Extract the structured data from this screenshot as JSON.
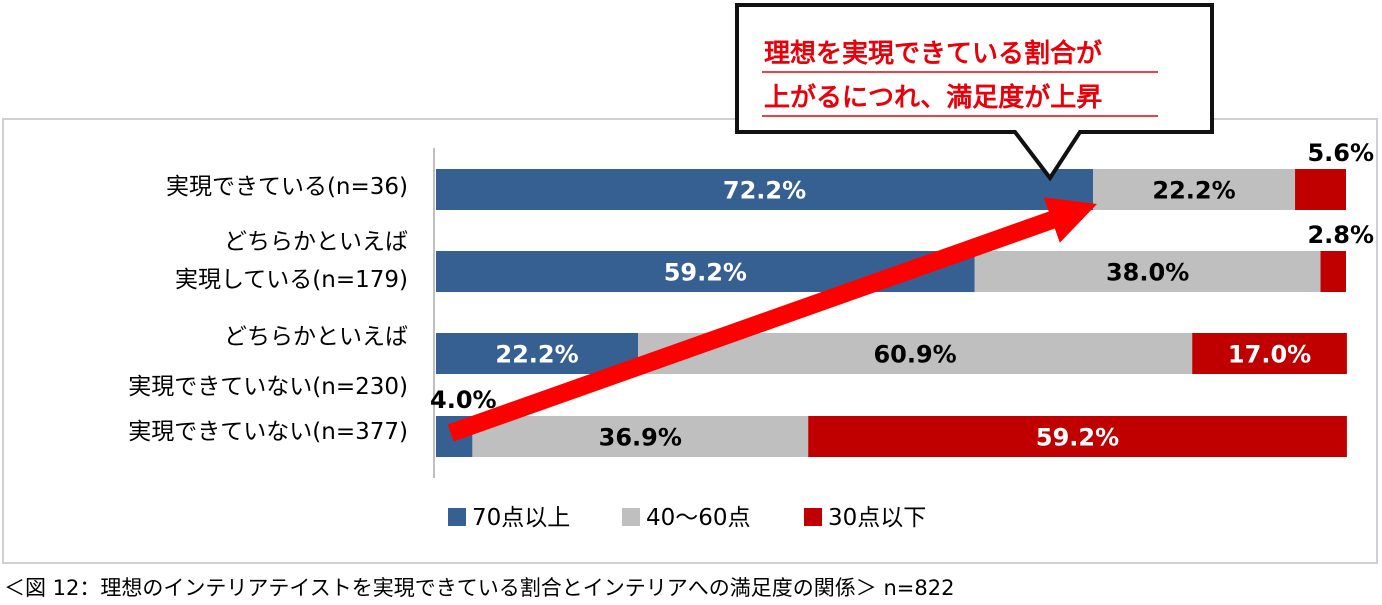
{
  "chart_data": {
    "type": "bar",
    "orientation": "horizontal",
    "stacked": "percent",
    "categories": [
      [
        "実現できている(n=36)"
      ],
      [
        "どちらかといえば",
        "実現している(n=179)"
      ],
      [
        "どちらかといえば",
        "実現できていない(n=230)"
      ],
      [
        "実現できていない(n=377)"
      ]
    ],
    "series": [
      {
        "name": "70点以上",
        "color": "#376092",
        "values": [
          72.2,
          59.2,
          22.2,
          4.0
        ],
        "labels": [
          "72.2%",
          "59.2%",
          "22.2%",
          "4.0%"
        ]
      },
      {
        "name": "40〜60点",
        "color": "#bfbfbf",
        "values": [
          22.2,
          38.0,
          60.9,
          36.9
        ],
        "labels": [
          "22.2%",
          "38.0%",
          "60.9%",
          "36.9%"
        ]
      },
      {
        "name": "30点以下",
        "color": "#c00000",
        "values": [
          5.6,
          2.8,
          17.0,
          59.2
        ],
        "labels": [
          "5.6%",
          "2.8%",
          "17.0%",
          "59.2%"
        ]
      }
    ],
    "xlim": [
      0,
      100
    ],
    "legend_position": "bottom",
    "annotation": {
      "lines": [
        "理想を実現できている割合が",
        "上がるにつれ、満足度が上昇"
      ],
      "text_color": "#e8000b",
      "arrow_color": "#ff0000"
    }
  },
  "caption": "＜図 12：理想のインテリアテイストを実現できている割合とインテリアへの満足度の関係＞ n=822"
}
